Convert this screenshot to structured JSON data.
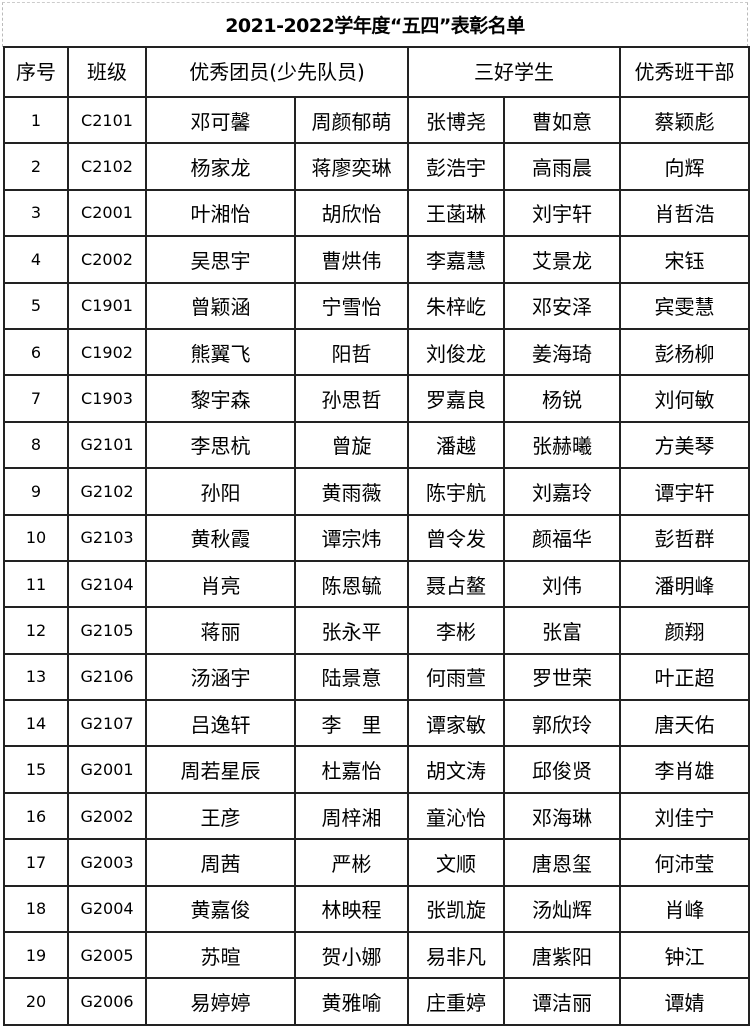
{
  "title": "2021-2022学年度“五四”表彰名单",
  "headers": {
    "index": "序号",
    "class": "班级",
    "excellent_member": "优秀团员(少先队员)",
    "three_good": "三好学生",
    "excellent_cadre": "优秀班干部"
  },
  "rows": [
    {
      "no": "1",
      "class": "C2101",
      "member": [
        "邓可馨",
        "周颜郁萌"
      ],
      "three_good": [
        "张博尧",
        "曹如意"
      ],
      "cadre": "蔡颖彪"
    },
    {
      "no": "2",
      "class": "C2102",
      "member": [
        "杨家龙",
        "蒋廖奕琳"
      ],
      "three_good": [
        "彭浩宇",
        "高雨晨"
      ],
      "cadre": "向辉"
    },
    {
      "no": "3",
      "class": "C2001",
      "member": [
        "叶湘怡",
        "胡欣怡"
      ],
      "three_good": [
        "王菡琳",
        "刘宇轩"
      ],
      "cadre": "肖哲浩"
    },
    {
      "no": "4",
      "class": "C2002",
      "member": [
        "吴思宇",
        "曹烘伟"
      ],
      "three_good": [
        "李嘉慧",
        "艾景龙"
      ],
      "cadre": "宋钰"
    },
    {
      "no": "5",
      "class": "C1901",
      "member": [
        "曾颖涵",
        "宁雪怡"
      ],
      "three_good": [
        "朱梓屹",
        "邓安泽"
      ],
      "cadre": "宾雯慧"
    },
    {
      "no": "6",
      "class": "C1902",
      "member": [
        "熊翼飞",
        "阳哲"
      ],
      "three_good": [
        "刘俊龙",
        "姜海琦"
      ],
      "cadre": "彭杨柳"
    },
    {
      "no": "7",
      "class": "C1903",
      "member": [
        "黎宇森",
        "孙思哲"
      ],
      "three_good": [
        "罗嘉良",
        "杨锐"
      ],
      "cadre": "刘何敏"
    },
    {
      "no": "8",
      "class": "G2101",
      "member": [
        "李思杭",
        "曾旋"
      ],
      "three_good": [
        "潘越",
        "张赫曦"
      ],
      "cadre": "方美琴"
    },
    {
      "no": "9",
      "class": "G2102",
      "member": [
        "孙阳",
        "黄雨薇"
      ],
      "three_good": [
        "陈宇航",
        "刘嘉玲"
      ],
      "cadre": "谭宇轩"
    },
    {
      "no": "10",
      "class": "G2103",
      "member": [
        "黄秋霞",
        "谭宗炜"
      ],
      "three_good": [
        "曾令发",
        "颜福华"
      ],
      "cadre": "彭哲群"
    },
    {
      "no": "11",
      "class": "G2104",
      "member": [
        "肖亮",
        "陈恩毓"
      ],
      "three_good": [
        "聂占鳌",
        "刘伟"
      ],
      "cadre": "潘明峰"
    },
    {
      "no": "12",
      "class": "G2105",
      "member": [
        "蒋丽",
        "张永平"
      ],
      "three_good": [
        "李彬",
        "张富"
      ],
      "cadre": "颜翔"
    },
    {
      "no": "13",
      "class": "G2106",
      "member": [
        "汤涵宇",
        "陆景意"
      ],
      "three_good": [
        "何雨萱",
        "罗世荣"
      ],
      "cadre": "叶正超"
    },
    {
      "no": "14",
      "class": "G2107",
      "member": [
        "吕逸轩",
        "李　里"
      ],
      "three_good": [
        "谭家敏",
        "郭欣玲"
      ],
      "cadre": "唐天佑"
    },
    {
      "no": "15",
      "class": "G2001",
      "member": [
        "周若星辰",
        "杜嘉怡"
      ],
      "three_good": [
        "胡文涛",
        "邱俊贤"
      ],
      "cadre": "李肖雄"
    },
    {
      "no": "16",
      "class": "G2002",
      "member": [
        "王彦",
        "周梓湘"
      ],
      "three_good": [
        "童沁怡",
        "邓海琳"
      ],
      "cadre": "刘佳宁"
    },
    {
      "no": "17",
      "class": "G2003",
      "member": [
        "周茜",
        "严彬"
      ],
      "three_good": [
        "文顺",
        "唐恩玺"
      ],
      "cadre": "何沛莹"
    },
    {
      "no": "18",
      "class": "G2004",
      "member": [
        "黄嘉俊",
        "林映程"
      ],
      "three_good": [
        "张凯旋",
        "汤灿辉"
      ],
      "cadre": "肖峰"
    },
    {
      "no": "19",
      "class": "G2005",
      "member": [
        "苏暄",
        "贺小娜"
      ],
      "three_good": [
        "易非凡",
        "唐紫阳"
      ],
      "cadre": "钟江"
    },
    {
      "no": "20",
      "class": "G2006",
      "member": [
        "易婷婷",
        "黄雅喻"
      ],
      "three_good": [
        "庄重婷",
        "谭洁丽"
      ],
      "cadre": "谭婧"
    }
  ]
}
